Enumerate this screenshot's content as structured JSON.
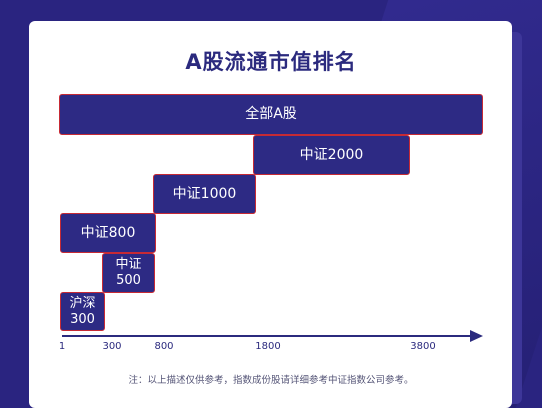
{
  "title": "A股流通市值排名",
  "bars": {
    "all": "全部A股",
    "zz2000": "中证2000",
    "zz1000": "中证1000",
    "zz800": "中证800",
    "zz500_line1": "中证",
    "zz500_line2": "500",
    "hs300_line1": "沪深",
    "hs300_line2": "300"
  },
  "axis_ticks": [
    "1",
    "300",
    "800",
    "1800",
    "3800"
  ],
  "note": "注：以上描述仅供参考，指数成份股请详细参考中证指数公司参考。",
  "colors": {
    "bar_fill": "#2d2a84",
    "bar_border": "#c62a35",
    "background": "#2a2480",
    "title": "#2b2a7e"
  }
}
